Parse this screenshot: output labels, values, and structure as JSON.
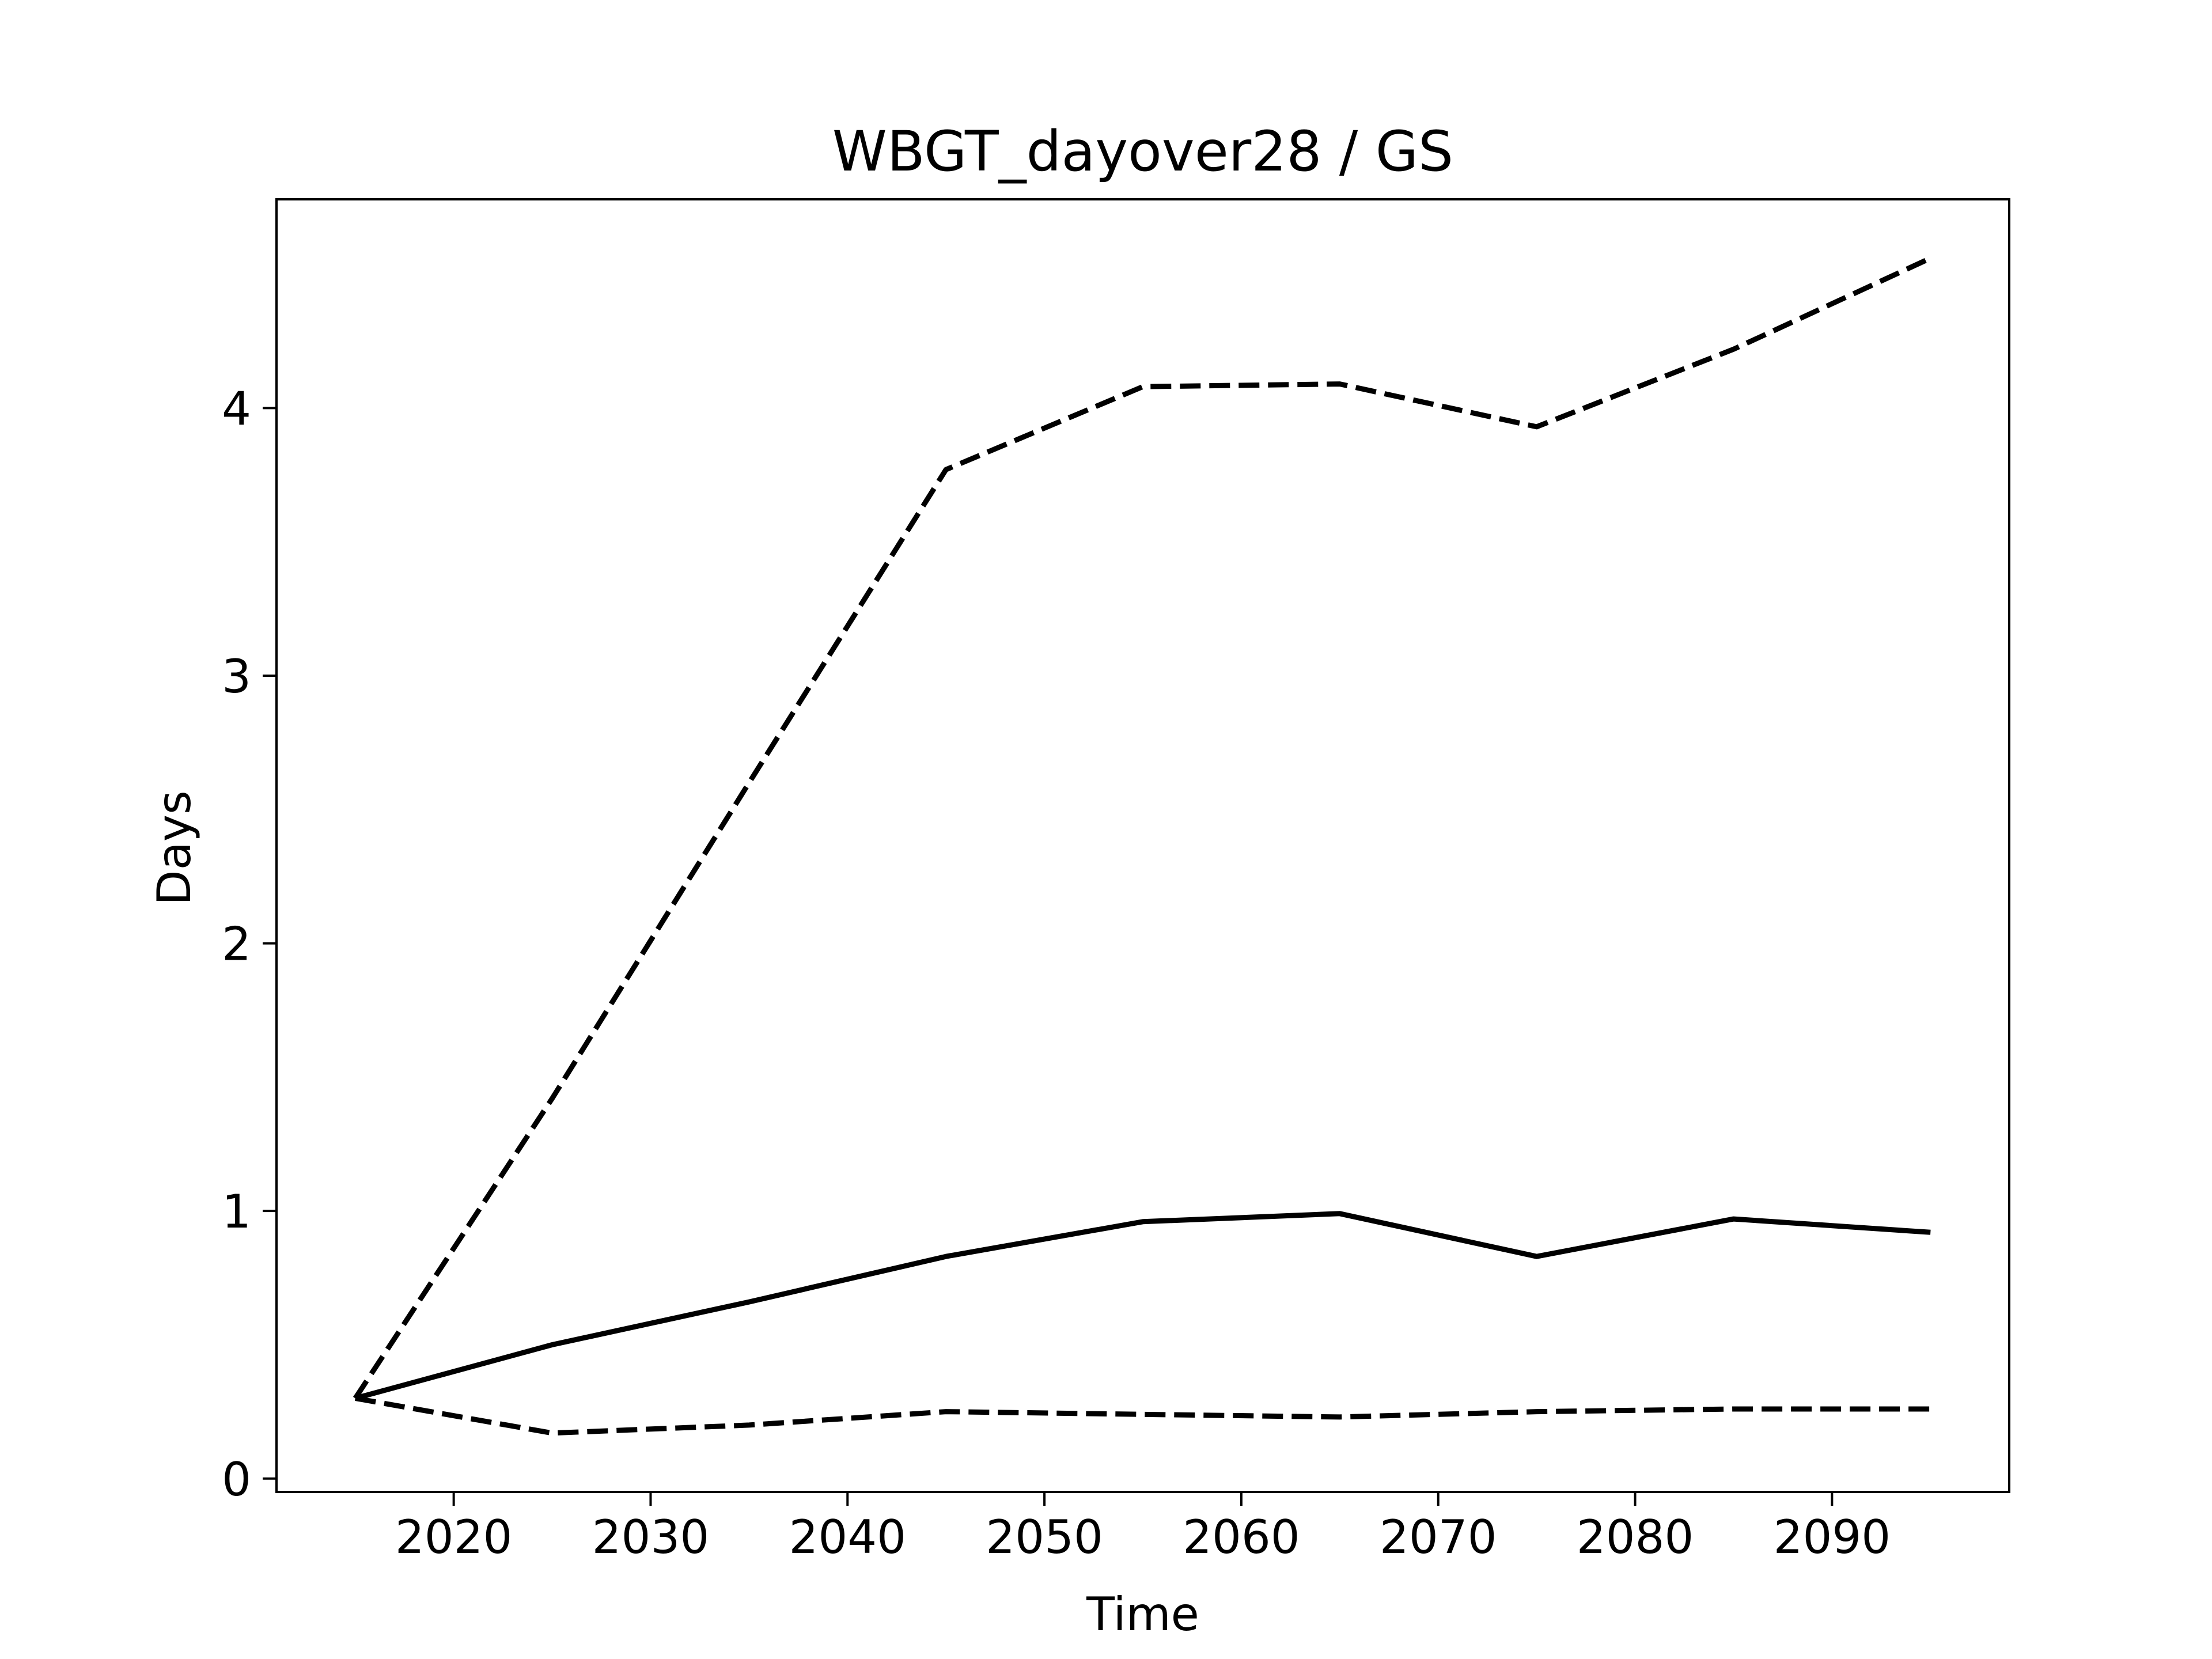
{
  "chart_data": {
    "type": "line",
    "title": "WBGT_dayover28 / GS",
    "xlabel": "Time",
    "ylabel": "Days",
    "xlim": [
      2011,
      2099
    ],
    "ylim": [
      -0.05,
      4.78
    ],
    "xticks": [
      2020,
      2030,
      2040,
      2050,
      2060,
      2070,
      2080,
      2090
    ],
    "yticks": [
      0,
      1,
      2,
      3,
      4
    ],
    "grid": false,
    "legend": "none",
    "x": [
      2015,
      2025,
      2035,
      2045,
      2055,
      2065,
      2075,
      2085,
      2095
    ],
    "series": [
      {
        "style": "solid",
        "color": "#000000",
        "values": [
          0.3,
          0.5,
          0.66,
          0.83,
          0.96,
          0.99,
          0.83,
          0.97,
          0.92
        ]
      },
      {
        "style": "dashed",
        "color": "#000000",
        "values": [
          0.3,
          1.42,
          2.6,
          3.77,
          4.08,
          4.09,
          3.93,
          4.22,
          4.56
        ]
      },
      {
        "style": "dashed",
        "color": "#000000",
        "values": [
          0.3,
          0.17,
          0.2,
          0.25,
          0.24,
          0.23,
          0.25,
          0.26,
          0.26
        ]
      }
    ]
  }
}
